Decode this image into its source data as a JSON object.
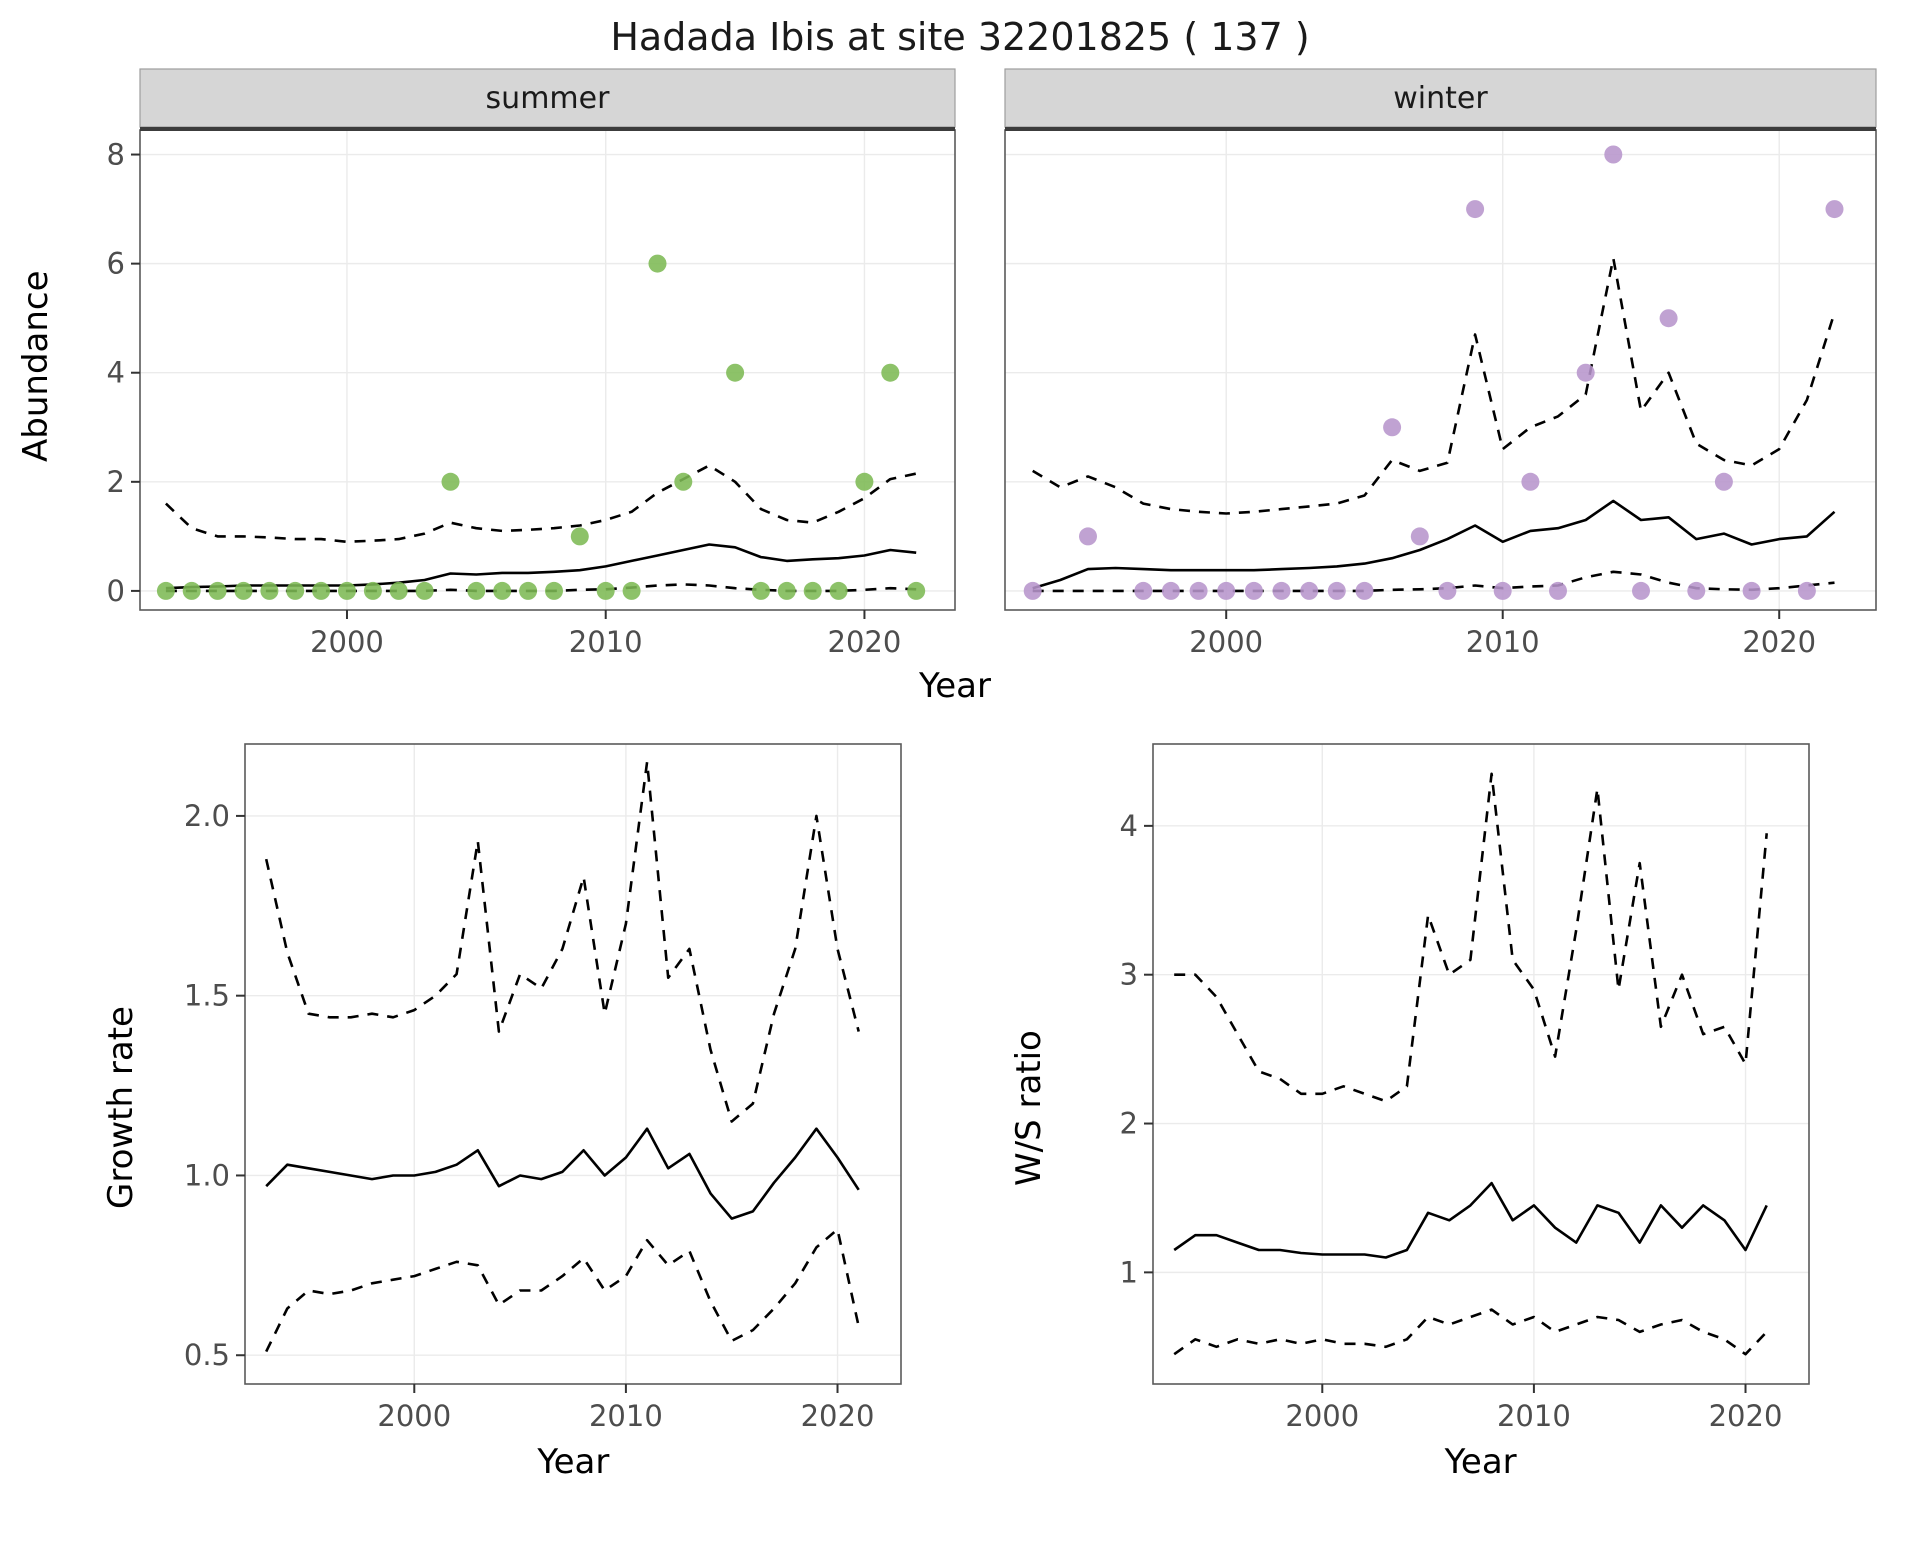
{
  "title": "Hadada Ibis at site 32201825 ( 137 )",
  "labels": {
    "year": "Year",
    "abundance": "Abundance",
    "growth": "Growth rate",
    "ws": "W/S ratio"
  },
  "colors": {
    "summer_points": "#7db954",
    "winter_points": "#b795cc",
    "line": "#000000",
    "strip_bg": "#d6d6d6",
    "strip_border": "#9e9e9e",
    "strip_rule": "#3c3c3c",
    "grid": "#ebebeb",
    "border": "#5a5a5a",
    "tick_text": "#4d4d4d"
  },
  "chart_data": [
    {
      "id": "abundance-summer",
      "type": "scatter",
      "facet_label": "summer",
      "xlabel": "Year",
      "ylabel": "Abundance",
      "xlim": [
        1992,
        2023.5
      ],
      "ylim": [
        -0.35,
        8.45
      ],
      "xticks": [
        2000,
        2010,
        2020
      ],
      "xtick_labels": [
        "2000",
        "2010",
        "2020"
      ],
      "yticks": [
        0,
        2,
        4,
        6,
        8
      ],
      "ytick_labels": [
        "0",
        "2",
        "4",
        "6",
        "8"
      ],
      "show_ytick_labels": true,
      "grid": true,
      "points": {
        "color_key": "summer_points",
        "x": [
          1993,
          1994,
          1995,
          1996,
          1997,
          1998,
          1999,
          2000,
          2001,
          2002,
          2003,
          2004,
          2005,
          2006,
          2007,
          2008,
          2009,
          2010,
          2011,
          2012,
          2013,
          2015,
          2016,
          2017,
          2018,
          2019,
          2020,
          2021,
          2022
        ],
        "y": [
          0,
          0,
          0,
          0,
          0,
          0,
          0,
          0,
          0,
          0,
          0,
          2,
          0,
          0,
          0,
          0,
          1,
          0,
          0,
          6,
          2,
          4,
          0,
          0,
          0,
          0,
          2,
          4,
          0
        ]
      },
      "series": [
        {
          "name": "fit-median",
          "style": "solid",
          "x": [
            1993,
            1994,
            1995,
            1996,
            1997,
            1998,
            1999,
            2000,
            2001,
            2002,
            2003,
            2004,
            2005,
            2006,
            2007,
            2008,
            2009,
            2010,
            2011,
            2012,
            2013,
            2014,
            2015,
            2016,
            2017,
            2018,
            2019,
            2020,
            2021,
            2022
          ],
          "y": [
            0.05,
            0.07,
            0.08,
            0.1,
            0.1,
            0.1,
            0.1,
            0.1,
            0.12,
            0.15,
            0.2,
            0.32,
            0.3,
            0.33,
            0.33,
            0.35,
            0.38,
            0.45,
            0.55,
            0.65,
            0.75,
            0.85,
            0.8,
            0.62,
            0.55,
            0.58,
            0.6,
            0.65,
            0.75,
            0.7
          ]
        },
        {
          "name": "ci-upper",
          "style": "dashed",
          "x": [
            1993,
            1994,
            1995,
            1996,
            1997,
            1998,
            1999,
            2000,
            2001,
            2002,
            2003,
            2004,
            2005,
            2006,
            2007,
            2008,
            2009,
            2010,
            2011,
            2012,
            2013,
            2014,
            2015,
            2016,
            2017,
            2018,
            2019,
            2020,
            2021,
            2022
          ],
          "y": [
            1.6,
            1.15,
            1.0,
            1.0,
            0.98,
            0.95,
            0.95,
            0.9,
            0.92,
            0.95,
            1.05,
            1.25,
            1.15,
            1.1,
            1.12,
            1.15,
            1.2,
            1.3,
            1.45,
            1.8,
            2.05,
            2.3,
            2.0,
            1.5,
            1.3,
            1.25,
            1.45,
            1.7,
            2.05,
            2.15
          ]
        },
        {
          "name": "ci-lower",
          "style": "dashed",
          "x": [
            1993,
            1994,
            1995,
            1996,
            1997,
            1998,
            1999,
            2000,
            2001,
            2002,
            2003,
            2004,
            2005,
            2006,
            2007,
            2008,
            2009,
            2010,
            2011,
            2012,
            2013,
            2014,
            2015,
            2016,
            2017,
            2018,
            2019,
            2020,
            2021,
            2022
          ],
          "y": [
            0,
            0,
            0,
            0,
            0,
            0,
            0,
            0,
            0,
            0,
            0,
            0.02,
            0,
            0,
            0,
            0,
            0.02,
            0.03,
            0.06,
            0.1,
            0.12,
            0.1,
            0.05,
            0.02,
            0,
            0,
            0,
            0.02,
            0.05,
            0.03
          ]
        }
      ]
    },
    {
      "id": "abundance-winter",
      "type": "scatter",
      "facet_label": "winter",
      "xlabel": "Year",
      "ylabel": "Abundance",
      "xlim": [
        1992,
        2023.5
      ],
      "ylim": [
        -0.35,
        8.45
      ],
      "xticks": [
        2000,
        2010,
        2020
      ],
      "xtick_labels": [
        "2000",
        "2010",
        "2020"
      ],
      "yticks": [
        0,
        2,
        4,
        6,
        8
      ],
      "ytick_labels": [
        "0",
        "2",
        "4",
        "6",
        "8"
      ],
      "show_ytick_labels": false,
      "grid": true,
      "points": {
        "color_key": "winter_points",
        "x": [
          1993,
          1995,
          1997,
          1998,
          1999,
          2000,
          2001,
          2002,
          2003,
          2004,
          2005,
          2006,
          2007,
          2008,
          2009,
          2010,
          2011,
          2012,
          2013,
          2014,
          2015,
          2016,
          2017,
          2018,
          2019,
          2021,
          2022
        ],
        "y": [
          0,
          1,
          0,
          0,
          0,
          0,
          0,
          0,
          0,
          0,
          0,
          3,
          1,
          0,
          7,
          0,
          2,
          0,
          4,
          8,
          0,
          5,
          0,
          2,
          0,
          0,
          7
        ]
      },
      "series": [
        {
          "name": "fit-median",
          "style": "solid",
          "x": [
            1993,
            1994,
            1995,
            1996,
            1997,
            1998,
            1999,
            2000,
            2001,
            2002,
            2003,
            2004,
            2005,
            2006,
            2007,
            2008,
            2009,
            2010,
            2011,
            2012,
            2013,
            2014,
            2015,
            2016,
            2017,
            2018,
            2019,
            2020,
            2021,
            2022
          ],
          "y": [
            0.05,
            0.2,
            0.4,
            0.42,
            0.4,
            0.38,
            0.38,
            0.38,
            0.38,
            0.4,
            0.42,
            0.45,
            0.5,
            0.6,
            0.75,
            0.95,
            1.2,
            0.9,
            1.1,
            1.15,
            1.3,
            1.65,
            1.3,
            1.35,
            0.95,
            1.05,
            0.85,
            0.95,
            1.0,
            1.45
          ]
        },
        {
          "name": "ci-upper",
          "style": "dashed",
          "x": [
            1993,
            1994,
            1995,
            1996,
            1997,
            1998,
            1999,
            2000,
            2001,
            2002,
            2003,
            2004,
            2005,
            2006,
            2007,
            2008,
            2009,
            2010,
            2011,
            2012,
            2013,
            2014,
            2015,
            2016,
            2017,
            2018,
            2019,
            2020,
            2021,
            2022
          ],
          "y": [
            2.2,
            1.9,
            2.1,
            1.9,
            1.6,
            1.5,
            1.45,
            1.42,
            1.45,
            1.5,
            1.55,
            1.6,
            1.75,
            2.4,
            2.2,
            2.35,
            4.7,
            2.6,
            3.0,
            3.2,
            3.6,
            6.1,
            3.3,
            4.0,
            2.7,
            2.4,
            2.3,
            2.6,
            3.5,
            5.1
          ]
        },
        {
          "name": "ci-lower",
          "style": "dashed",
          "x": [
            1993,
            1994,
            1995,
            1996,
            1997,
            1998,
            1999,
            2000,
            2001,
            2002,
            2003,
            2004,
            2005,
            2006,
            2007,
            2008,
            2009,
            2010,
            2011,
            2012,
            2013,
            2014,
            2015,
            2016,
            2017,
            2018,
            2019,
            2020,
            2021,
            2022
          ],
          "y": [
            0,
            0,
            0,
            0,
            0,
            0,
            0,
            0,
            0,
            0,
            0,
            0,
            0,
            0.02,
            0.03,
            0.05,
            0.1,
            0.05,
            0.08,
            0.1,
            0.25,
            0.35,
            0.3,
            0.15,
            0.05,
            0.03,
            0.02,
            0.05,
            0.1,
            0.15
          ]
        }
      ]
    },
    {
      "id": "growth-rate",
      "type": "line",
      "facet_label": "",
      "xlabel": "Year",
      "ylabel": "Growth rate",
      "xlim": [
        1992,
        2023
      ],
      "ylim": [
        0.42,
        2.2
      ],
      "xticks": [
        2000,
        2010,
        2020
      ],
      "xtick_labels": [
        "2000",
        "2010",
        "2020"
      ],
      "yticks": [
        0.5,
        1.0,
        1.5,
        2.0
      ],
      "ytick_labels": [
        "0.5",
        "1.0",
        "1.5",
        "2.0"
      ],
      "show_ytick_labels": true,
      "grid": true,
      "series": [
        {
          "name": "fit-median",
          "style": "solid",
          "x": [
            1993,
            1994,
            1995,
            1996,
            1997,
            1998,
            1999,
            2000,
            2001,
            2002,
            2003,
            2004,
            2005,
            2006,
            2007,
            2008,
            2009,
            2010,
            2011,
            2012,
            2013,
            2014,
            2015,
            2016,
            2017,
            2018,
            2019,
            2020,
            2021
          ],
          "y": [
            0.97,
            1.03,
            1.02,
            1.01,
            1.0,
            0.99,
            1.0,
            1.0,
            1.01,
            1.03,
            1.07,
            0.97,
            1.0,
            0.99,
            1.01,
            1.07,
            1.0,
            1.05,
            1.13,
            1.02,
            1.06,
            0.95,
            0.88,
            0.9,
            0.98,
            1.05,
            1.13,
            1.05,
            0.96
          ]
        },
        {
          "name": "ci-upper",
          "style": "dashed",
          "x": [
            1993,
            1994,
            1995,
            1996,
            1997,
            1998,
            1999,
            2000,
            2001,
            2002,
            2003,
            2004,
            2005,
            2006,
            2007,
            2008,
            2009,
            2010,
            2011,
            2012,
            2013,
            2014,
            2015,
            2016,
            2017,
            2018,
            2019,
            2020,
            2021
          ],
          "y": [
            1.88,
            1.62,
            1.45,
            1.44,
            1.44,
            1.45,
            1.44,
            1.46,
            1.5,
            1.56,
            1.93,
            1.4,
            1.56,
            1.52,
            1.63,
            1.83,
            1.45,
            1.7,
            2.15,
            1.55,
            1.63,
            1.35,
            1.15,
            1.2,
            1.45,
            1.63,
            2.0,
            1.63,
            1.4
          ]
        },
        {
          "name": "ci-lower",
          "style": "dashed",
          "x": [
            1993,
            1994,
            1995,
            1996,
            1997,
            1998,
            1999,
            2000,
            2001,
            2002,
            2003,
            2004,
            2005,
            2006,
            2007,
            2008,
            2009,
            2010,
            2011,
            2012,
            2013,
            2014,
            2015,
            2016,
            2017,
            2018,
            2019,
            2020,
            2021
          ],
          "y": [
            0.51,
            0.63,
            0.68,
            0.67,
            0.68,
            0.7,
            0.71,
            0.72,
            0.74,
            0.76,
            0.75,
            0.64,
            0.68,
            0.68,
            0.72,
            0.77,
            0.68,
            0.72,
            0.82,
            0.75,
            0.79,
            0.65,
            0.54,
            0.57,
            0.63,
            0.7,
            0.8,
            0.85,
            0.58
          ]
        }
      ]
    },
    {
      "id": "ws-ratio",
      "type": "line",
      "facet_label": "",
      "xlabel": "Year",
      "ylabel": "W/S ratio",
      "xlim": [
        1992,
        2023
      ],
      "ylim": [
        0.25,
        4.55
      ],
      "xticks": [
        2000,
        2010,
        2020
      ],
      "xtick_labels": [
        "2000",
        "2010",
        "2020"
      ],
      "yticks": [
        1,
        2,
        3,
        4
      ],
      "ytick_labels": [
        "1",
        "2",
        "3",
        "4"
      ],
      "show_ytick_labels": true,
      "grid": true,
      "series": [
        {
          "name": "fit-median",
          "style": "solid",
          "x": [
            1993,
            1994,
            1995,
            1996,
            1997,
            1998,
            1999,
            2000,
            2001,
            2002,
            2003,
            2004,
            2005,
            2006,
            2007,
            2008,
            2009,
            2010,
            2011,
            2012,
            2013,
            2014,
            2015,
            2016,
            2017,
            2018,
            2019,
            2020,
            2021
          ],
          "y": [
            1.15,
            1.25,
            1.25,
            1.2,
            1.15,
            1.15,
            1.13,
            1.12,
            1.12,
            1.12,
            1.1,
            1.15,
            1.4,
            1.35,
            1.45,
            1.6,
            1.35,
            1.45,
            1.3,
            1.2,
            1.45,
            1.4,
            1.2,
            1.45,
            1.3,
            1.45,
            1.35,
            1.15,
            1.45
          ]
        },
        {
          "name": "ci-upper",
          "style": "dashed",
          "x": [
            1993,
            1994,
            1995,
            1996,
            1997,
            1998,
            1999,
            2000,
            2001,
            2002,
            2003,
            2004,
            2005,
            2006,
            2007,
            2008,
            2009,
            2010,
            2011,
            2012,
            2013,
            2014,
            2015,
            2016,
            2017,
            2018,
            2019,
            2020,
            2021
          ],
          "y": [
            3.0,
            3.0,
            2.85,
            2.6,
            2.35,
            2.3,
            2.2,
            2.2,
            2.25,
            2.2,
            2.15,
            2.25,
            3.4,
            3.0,
            3.1,
            4.35,
            3.1,
            2.9,
            2.45,
            3.3,
            4.25,
            2.9,
            3.75,
            2.65,
            3.0,
            2.6,
            2.65,
            2.4,
            3.95
          ]
        },
        {
          "name": "ci-lower",
          "style": "dashed",
          "x": [
            1993,
            1994,
            1995,
            1996,
            1997,
            1998,
            1999,
            2000,
            2001,
            2002,
            2003,
            2004,
            2005,
            2006,
            2007,
            2008,
            2009,
            2010,
            2011,
            2012,
            2013,
            2014,
            2015,
            2016,
            2017,
            2018,
            2019,
            2020,
            2021
          ],
          "y": [
            0.45,
            0.55,
            0.5,
            0.55,
            0.52,
            0.55,
            0.52,
            0.55,
            0.52,
            0.52,
            0.5,
            0.55,
            0.7,
            0.65,
            0.7,
            0.75,
            0.65,
            0.7,
            0.6,
            0.65,
            0.7,
            0.68,
            0.6,
            0.65,
            0.68,
            0.6,
            0.55,
            0.45,
            0.6
          ]
        }
      ]
    }
  ]
}
